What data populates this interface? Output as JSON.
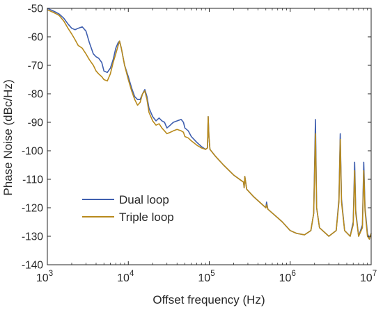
{
  "chart_data": {
    "type": "line",
    "xlabel": "Offset frequency (Hz)",
    "ylabel": "Phase Noise (dBc/Hz)",
    "x_scale": "log",
    "xlim": [
      1000,
      10000000
    ],
    "ylim": [
      -140,
      -50
    ],
    "x_ticks": [
      1000,
      10000,
      100000,
      1000000,
      10000000
    ],
    "x_tick_labels": [
      {
        "base": "10",
        "exp": "3"
      },
      {
        "base": "10",
        "exp": "4"
      },
      {
        "base": "10",
        "exp": "5"
      },
      {
        "base": "10",
        "exp": "6"
      },
      {
        "base": "10",
        "exp": "7"
      }
    ],
    "y_ticks": [
      -50,
      -60,
      -70,
      -80,
      -90,
      -100,
      -110,
      -120,
      -130,
      -140
    ],
    "y_tick_labels": [
      "-50",
      "-60",
      "-70",
      "-80",
      "-90",
      "-100",
      "-110",
      "-120",
      "-130",
      "-140"
    ],
    "grid": false,
    "legend_position": "lower-left",
    "series": [
      {
        "name": "Dual loop",
        "color": "#3F5FAF",
        "points": [
          [
            1000,
            -50
          ],
          [
            1100,
            -50.5
          ],
          [
            1200,
            -51
          ],
          [
            1300,
            -51.5
          ],
          [
            1400,
            -52
          ],
          [
            1600,
            -53.5
          ],
          [
            1800,
            -55.5
          ],
          [
            2000,
            -57
          ],
          [
            2200,
            -57.5
          ],
          [
            2400,
            -57
          ],
          [
            2700,
            -56.5
          ],
          [
            3000,
            -58
          ],
          [
            3300,
            -62
          ],
          [
            3700,
            -66
          ],
          [
            4000,
            -67
          ],
          [
            4300,
            -67.5
          ],
          [
            4700,
            -69
          ],
          [
            5000,
            -72
          ],
          [
            5500,
            -72.5
          ],
          [
            6000,
            -71
          ],
          [
            6500,
            -68
          ],
          [
            7000,
            -64
          ],
          [
            7500,
            -62
          ],
          [
            7800,
            -61.5
          ],
          [
            8200,
            -64
          ],
          [
            9000,
            -70
          ],
          [
            10000,
            -74
          ],
          [
            11000,
            -78
          ],
          [
            12000,
            -81
          ],
          [
            13000,
            -82
          ],
          [
            14000,
            -82
          ],
          [
            15000,
            -80
          ],
          [
            16000,
            -78.5
          ],
          [
            17000,
            -81
          ],
          [
            18000,
            -85
          ],
          [
            20000,
            -88
          ],
          [
            22000,
            -89.5
          ],
          [
            24000,
            -88.5
          ],
          [
            26000,
            -89.5
          ],
          [
            28000,
            -90
          ],
          [
            30000,
            -92
          ],
          [
            33000,
            -91
          ],
          [
            36000,
            -90
          ],
          [
            40000,
            -89.5
          ],
          [
            45000,
            -89
          ],
          [
            48000,
            -90
          ],
          [
            50000,
            -92
          ],
          [
            55000,
            -93
          ],
          [
            60000,
            -95
          ],
          [
            70000,
            -97
          ],
          [
            80000,
            -98.5
          ],
          [
            90000,
            -99.5
          ],
          [
            95000,
            -99
          ],
          [
            97000,
            -88
          ],
          [
            99000,
            -95
          ],
          [
            102000,
            -99.5
          ],
          [
            120000,
            -102
          ],
          [
            150000,
            -105
          ],
          [
            200000,
            -108.5
          ],
          [
            250000,
            -110.5
          ],
          [
            265000,
            -111
          ],
          [
            270000,
            -113
          ],
          [
            275000,
            -109
          ],
          [
            290000,
            -113.5
          ],
          [
            350000,
            -116
          ],
          [
            500000,
            -120
          ],
          [
            510000,
            -118
          ],
          [
            530000,
            -120.5
          ],
          [
            700000,
            -123.5
          ],
          [
            800000,
            -125
          ],
          [
            1000000,
            -128
          ],
          [
            1200000,
            -129
          ],
          [
            1500000,
            -129.5
          ],
          [
            1800000,
            -128
          ],
          [
            1950000,
            -122
          ],
          [
            2050000,
            -89
          ],
          [
            2120000,
            -120
          ],
          [
            2300000,
            -127
          ],
          [
            3000000,
            -130
          ],
          [
            3700000,
            -128
          ],
          [
            4000000,
            -117
          ],
          [
            4150000,
            -94
          ],
          [
            4300000,
            -117
          ],
          [
            4700000,
            -128
          ],
          [
            5500000,
            -130
          ],
          [
            6000000,
            -125
          ],
          [
            6250000,
            -104
          ],
          [
            6450000,
            -121
          ],
          [
            7000000,
            -130
          ],
          [
            7800000,
            -126
          ],
          [
            8100000,
            -104
          ],
          [
            8400000,
            -120
          ],
          [
            9000000,
            -129
          ],
          [
            9500000,
            -131
          ],
          [
            10000000,
            -129
          ]
        ]
      },
      {
        "name": "Triple loop",
        "color": "#B88A1C",
        "points": [
          [
            1000,
            -50.5
          ],
          [
            1100,
            -51
          ],
          [
            1200,
            -51.5
          ],
          [
            1300,
            -52
          ],
          [
            1400,
            -52.5
          ],
          [
            1600,
            -54.5
          ],
          [
            1800,
            -57
          ],
          [
            2000,
            -59
          ],
          [
            2200,
            -61
          ],
          [
            2400,
            -63
          ],
          [
            2700,
            -64
          ],
          [
            3000,
            -66
          ],
          [
            3300,
            -68
          ],
          [
            3700,
            -70
          ],
          [
            4000,
            -72
          ],
          [
            4300,
            -73
          ],
          [
            4700,
            -74
          ],
          [
            5000,
            -75
          ],
          [
            5500,
            -75.5
          ],
          [
            6000,
            -73
          ],
          [
            6500,
            -69
          ],
          [
            7000,
            -66
          ],
          [
            7500,
            -63
          ],
          [
            7800,
            -61.5
          ],
          [
            8200,
            -64
          ],
          [
            9000,
            -70
          ],
          [
            10000,
            -75
          ],
          [
            11000,
            -79
          ],
          [
            12000,
            -82
          ],
          [
            13000,
            -84
          ],
          [
            14000,
            -83
          ],
          [
            15000,
            -80
          ],
          [
            16000,
            -79
          ],
          [
            17000,
            -82
          ],
          [
            18000,
            -86.5
          ],
          [
            20000,
            -89.5
          ],
          [
            22000,
            -91
          ],
          [
            24000,
            -90.5
          ],
          [
            26000,
            -92
          ],
          [
            28000,
            -93
          ],
          [
            30000,
            -94
          ],
          [
            33000,
            -93.5
          ],
          [
            36000,
            -93
          ],
          [
            40000,
            -92.5
          ],
          [
            45000,
            -93
          ],
          [
            48000,
            -93.5
          ],
          [
            50000,
            -95
          ],
          [
            55000,
            -95.5
          ],
          [
            60000,
            -96.5
          ],
          [
            70000,
            -98
          ],
          [
            80000,
            -99
          ],
          [
            90000,
            -99.5
          ],
          [
            95000,
            -99
          ],
          [
            97000,
            -88
          ],
          [
            99000,
            -95
          ],
          [
            102000,
            -99.5
          ],
          [
            120000,
            -102
          ],
          [
            150000,
            -105
          ],
          [
            200000,
            -108.5
          ],
          [
            250000,
            -110.5
          ],
          [
            265000,
            -111
          ],
          [
            270000,
            -113
          ],
          [
            275000,
            -109
          ],
          [
            290000,
            -113.5
          ],
          [
            350000,
            -116
          ],
          [
            500000,
            -120
          ],
          [
            510000,
            -119
          ],
          [
            530000,
            -120.5
          ],
          [
            700000,
            -123.5
          ],
          [
            800000,
            -125
          ],
          [
            1000000,
            -128
          ],
          [
            1200000,
            -129
          ],
          [
            1500000,
            -129.5
          ],
          [
            1800000,
            -128
          ],
          [
            1950000,
            -122
          ],
          [
            2050000,
            -94
          ],
          [
            2120000,
            -120
          ],
          [
            2300000,
            -127
          ],
          [
            3000000,
            -130
          ],
          [
            3700000,
            -128
          ],
          [
            4000000,
            -118
          ],
          [
            4150000,
            -96
          ],
          [
            4300000,
            -118
          ],
          [
            4700000,
            -128
          ],
          [
            5500000,
            -130
          ],
          [
            6000000,
            -126
          ],
          [
            6250000,
            -107
          ],
          [
            6450000,
            -122
          ],
          [
            7000000,
            -130
          ],
          [
            7800000,
            -127
          ],
          [
            8100000,
            -107
          ],
          [
            8400000,
            -121
          ],
          [
            9000000,
            -130
          ],
          [
            9500000,
            -131
          ],
          [
            10000000,
            -129
          ]
        ]
      }
    ]
  }
}
